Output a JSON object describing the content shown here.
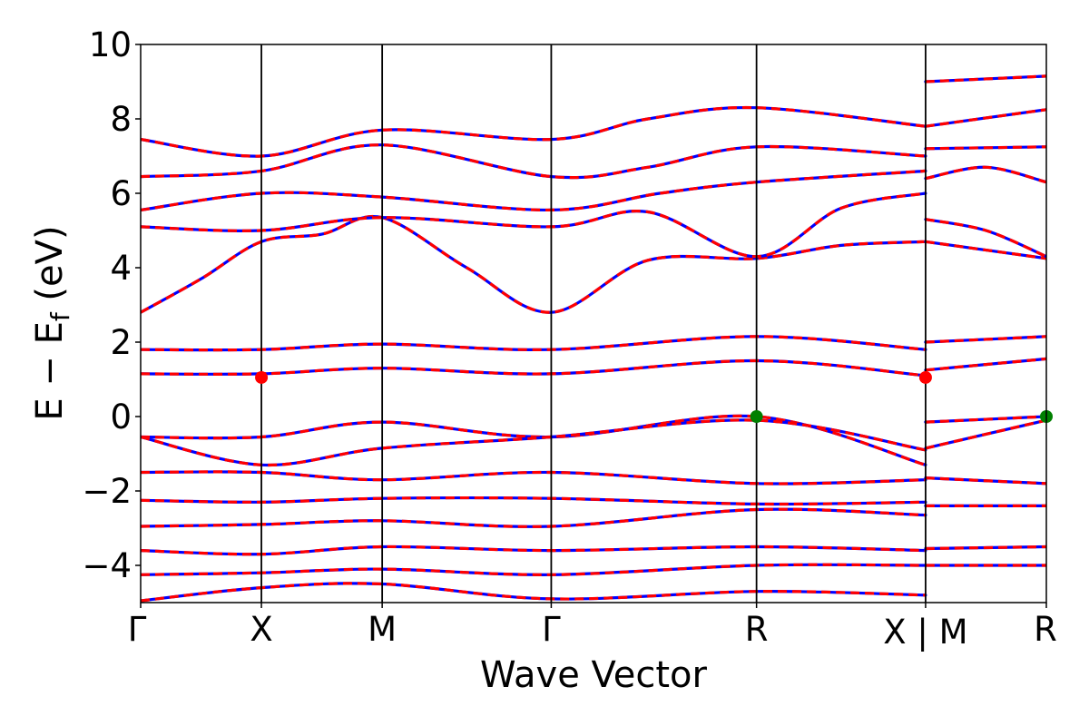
{
  "chart_data": {
    "type": "line",
    "xlabel": "Wave Vector",
    "ylabel": "E − E",
    "ylabel_subscript": "f",
    "ylabel_unit": " (eV)",
    "ylim": [
      -5,
      10
    ],
    "yticks": [
      -4,
      -2,
      0,
      2,
      4,
      6,
      8,
      10
    ],
    "ytick_labels": [
      "−4",
      "−2",
      "0",
      "2",
      "4",
      "6",
      "8",
      "10"
    ],
    "xlim": [
      0,
      7.6
    ],
    "kpoints": [
      {
        "label": "Γ",
        "x": 0.0
      },
      {
        "label": "X",
        "x": 1.0
      },
      {
        "label": "M",
        "x": 2.0
      },
      {
        "label": "Γ",
        "x": 3.4
      },
      {
        "label": "R",
        "x": 5.1
      },
      {
        "label": "X | M",
        "x": 6.5
      },
      {
        "label": "R",
        "x": 7.5
      }
    ],
    "grid": false,
    "legend": "none",
    "colors": {
      "band_red": "#ff0000",
      "band_blue": "#0000ff",
      "cbm_marker": "#ff0000",
      "vbm_marker": "#008000"
    },
    "series": [
      {
        "values": [
          [
            0,
            2.8
          ],
          [
            0.5,
            3.7
          ],
          [
            1.0,
            4.7
          ],
          [
            1.5,
            4.9
          ],
          [
            2.0,
            5.35
          ],
          [
            2.7,
            4.0
          ],
          [
            3.4,
            2.8
          ],
          [
            4.2,
            4.2
          ],
          [
            5.1,
            4.25
          ],
          [
            5.8,
            4.6
          ],
          [
            6.5,
            4.7
          ]
        ]
      },
      {
        "values": [
          [
            0,
            5.1
          ],
          [
            1.0,
            5.0
          ],
          [
            2.0,
            5.35
          ],
          [
            3.4,
            5.1
          ],
          [
            4.2,
            5.5
          ],
          [
            5.1,
            4.3
          ],
          [
            5.8,
            5.6
          ],
          [
            6.5,
            6.0
          ]
        ]
      },
      {
        "values": [
          [
            0,
            5.55
          ],
          [
            1.0,
            6.0
          ],
          [
            2.0,
            5.9
          ],
          [
            3.4,
            5.55
          ],
          [
            4.3,
            6.0
          ],
          [
            5.1,
            6.3
          ],
          [
            6.5,
            6.6
          ]
        ]
      },
      {
        "values": [
          [
            0,
            6.45
          ],
          [
            1.0,
            6.6
          ],
          [
            2.0,
            7.3
          ],
          [
            3.4,
            6.45
          ],
          [
            4.2,
            6.7
          ],
          [
            5.1,
            7.25
          ],
          [
            6.5,
            7.0
          ]
        ]
      },
      {
        "values": [
          [
            0,
            7.45
          ],
          [
            1.0,
            7.0
          ],
          [
            2.0,
            7.7
          ],
          [
            3.4,
            7.45
          ],
          [
            4.2,
            8.0
          ],
          [
            5.1,
            8.3
          ],
          [
            6.5,
            7.8
          ]
        ]
      },
      {
        "values": [
          [
            0,
            1.8
          ],
          [
            1.0,
            1.8
          ],
          [
            2.0,
            1.95
          ],
          [
            3.4,
            1.8
          ],
          [
            5.1,
            2.15
          ],
          [
            6.5,
            1.8
          ]
        ]
      },
      {
        "values": [
          [
            0,
            1.15
          ],
          [
            1.0,
            1.15
          ],
          [
            2.0,
            1.3
          ],
          [
            3.4,
            1.15
          ],
          [
            5.1,
            1.5
          ],
          [
            6.5,
            1.1
          ]
        ]
      },
      {
        "values": [
          [
            0,
            -0.55
          ],
          [
            1.0,
            -0.55
          ],
          [
            2.0,
            -0.15
          ],
          [
            3.4,
            -0.55
          ],
          [
            5.1,
            0.0
          ],
          [
            6.5,
            -1.3
          ]
        ]
      },
      {
        "values": [
          [
            0,
            -0.55
          ],
          [
            1.0,
            -1.3
          ],
          [
            2.0,
            -0.85
          ],
          [
            3.4,
            -0.55
          ],
          [
            5.1,
            -0.1
          ],
          [
            6.5,
            -0.9
          ]
        ]
      },
      {
        "values": [
          [
            0,
            -1.5
          ],
          [
            1.0,
            -1.5
          ],
          [
            2.0,
            -1.7
          ],
          [
            3.4,
            -1.5
          ],
          [
            5.1,
            -1.8
          ],
          [
            6.5,
            -1.7
          ]
        ]
      },
      {
        "values": [
          [
            0,
            -2.25
          ],
          [
            1.0,
            -2.3
          ],
          [
            2.0,
            -2.2
          ],
          [
            3.4,
            -2.2
          ],
          [
            5.1,
            -2.35
          ],
          [
            6.5,
            -2.3
          ]
        ]
      },
      {
        "values": [
          [
            0,
            -2.95
          ],
          [
            1.0,
            -2.9
          ],
          [
            2.0,
            -2.8
          ],
          [
            3.4,
            -2.95
          ],
          [
            5.1,
            -2.5
          ],
          [
            6.5,
            -2.65
          ]
        ]
      },
      {
        "values": [
          [
            0,
            -3.6
          ],
          [
            1.0,
            -3.7
          ],
          [
            2.0,
            -3.5
          ],
          [
            3.4,
            -3.6
          ],
          [
            5.1,
            -3.5
          ],
          [
            6.5,
            -3.6
          ]
        ]
      },
      {
        "values": [
          [
            0,
            -4.25
          ],
          [
            1.0,
            -4.2
          ],
          [
            2.0,
            -4.1
          ],
          [
            3.4,
            -4.25
          ],
          [
            5.1,
            -4.0
          ],
          [
            6.5,
            -4.0
          ]
        ]
      },
      {
        "values": [
          [
            0,
            -4.95
          ],
          [
            1.0,
            -4.6
          ],
          [
            2.0,
            -4.5
          ],
          [
            3.4,
            -4.9
          ],
          [
            5.1,
            -4.7
          ],
          [
            6.5,
            -4.8
          ]
        ]
      },
      {
        "values": [
          [
            6.5,
            2.0
          ],
          [
            7.5,
            2.15
          ]
        ]
      },
      {
        "values": [
          [
            6.5,
            1.25
          ],
          [
            7.5,
            1.55
          ]
        ]
      },
      {
        "values": [
          [
            6.5,
            -0.15
          ],
          [
            7.5,
            0.0
          ]
        ]
      },
      {
        "values": [
          [
            6.5,
            -0.85
          ],
          [
            7.5,
            -0.1
          ]
        ]
      },
      {
        "values": [
          [
            6.5,
            -1.65
          ],
          [
            7.5,
            -1.8
          ]
        ]
      },
      {
        "values": [
          [
            6.5,
            -2.4
          ],
          [
            7.5,
            -2.4
          ]
        ]
      },
      {
        "values": [
          [
            6.5,
            -3.55
          ],
          [
            7.5,
            -3.5
          ]
        ]
      },
      {
        "values": [
          [
            6.5,
            -4.0
          ],
          [
            7.5,
            -4.0
          ]
        ]
      },
      {
        "values": [
          [
            6.5,
            4.7
          ],
          [
            7.5,
            4.25
          ]
        ]
      },
      {
        "values": [
          [
            6.5,
            5.3
          ],
          [
            7.0,
            5.0
          ],
          [
            7.5,
            4.3
          ]
        ]
      },
      {
        "values": [
          [
            6.5,
            6.4
          ],
          [
            7.0,
            6.7
          ],
          [
            7.5,
            6.3
          ]
        ]
      },
      {
        "values": [
          [
            6.5,
            7.2
          ],
          [
            7.5,
            7.25
          ]
        ]
      },
      {
        "values": [
          [
            6.5,
            7.8
          ],
          [
            7.5,
            8.25
          ]
        ]
      },
      {
        "values": [
          [
            6.5,
            9.0
          ],
          [
            7.5,
            9.15
          ]
        ]
      }
    ],
    "markers": [
      {
        "type": "cbm",
        "x": 1.0,
        "y": 1.05
      },
      {
        "type": "cbm",
        "x": 6.5,
        "y": 1.05
      },
      {
        "type": "vbm",
        "x": 5.1,
        "y": 0.0
      },
      {
        "type": "vbm",
        "x": 7.5,
        "y": 0.0
      }
    ]
  }
}
